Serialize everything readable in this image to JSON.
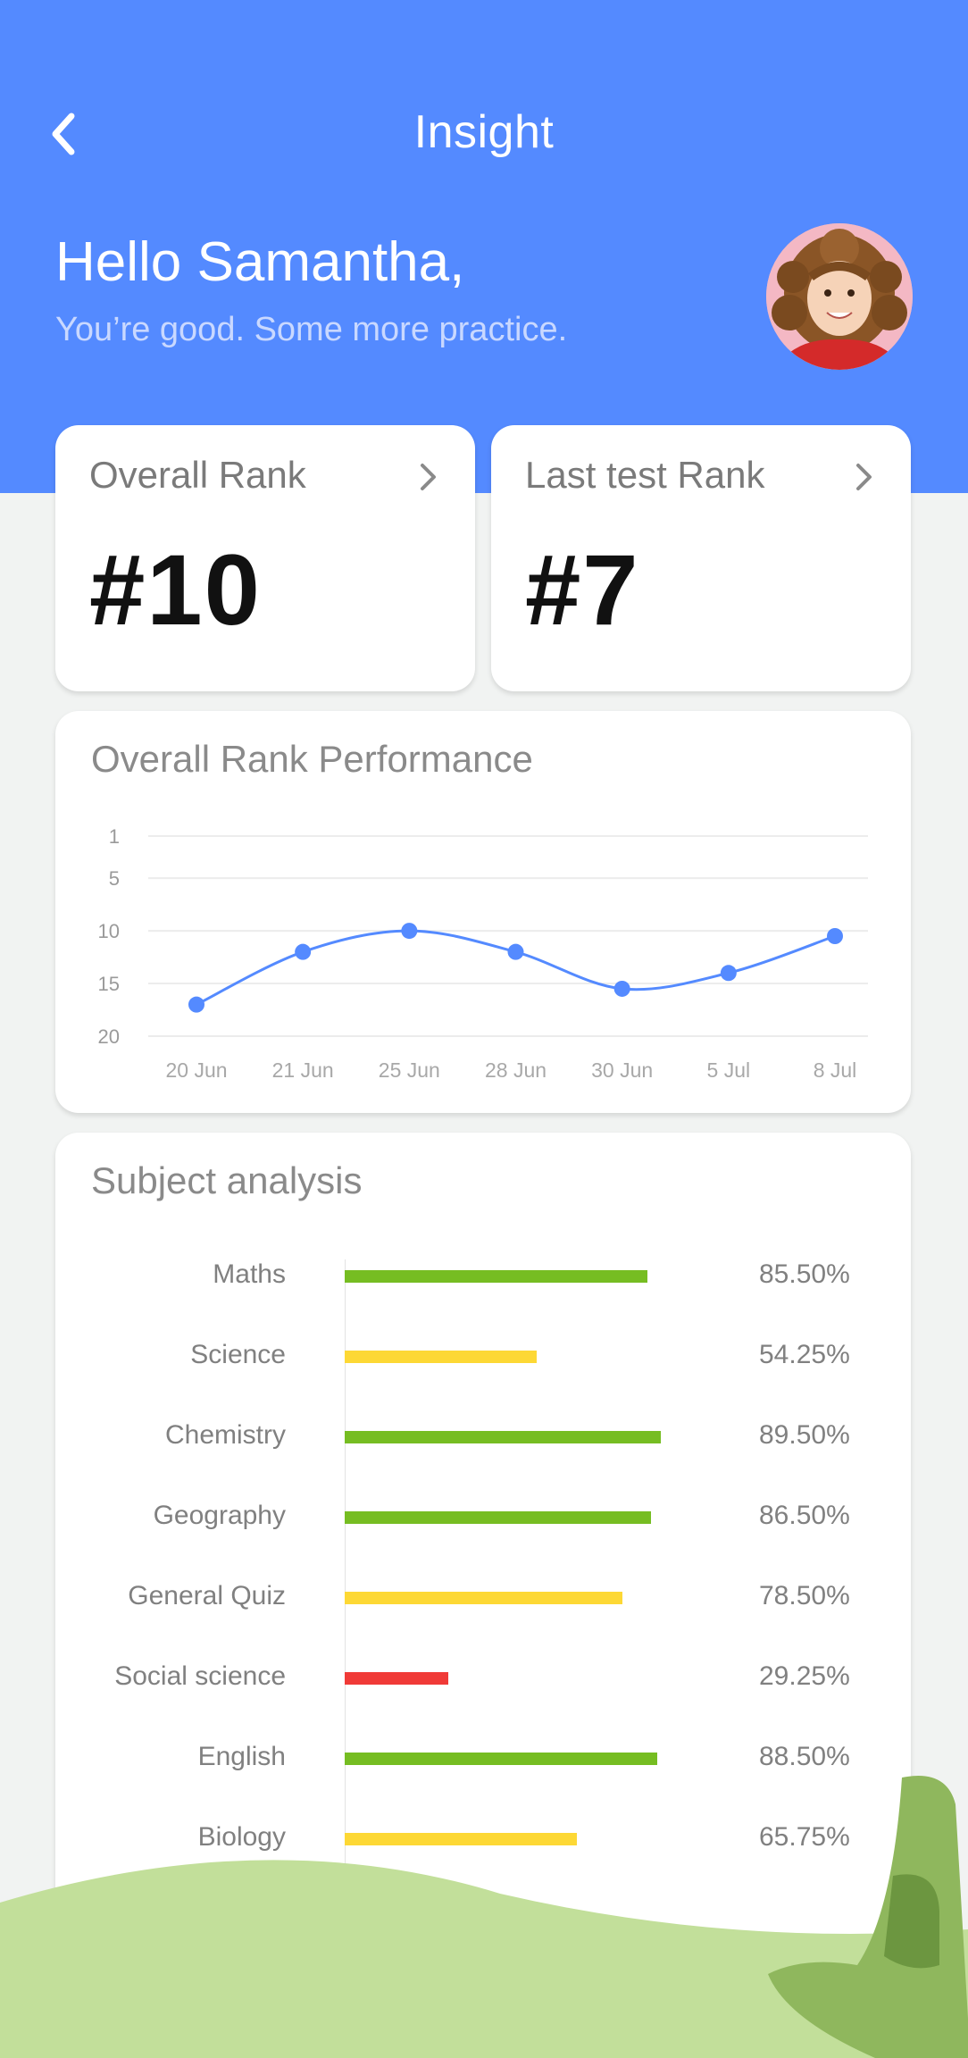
{
  "header": {
    "title": "Insight",
    "greeting": "Hello Samantha,",
    "subtext": "You’re good. Some more practice."
  },
  "rank_cards": [
    {
      "label": "Overall Rank",
      "value": "#10"
    },
    {
      "label": "Last test Rank",
      "value": "#7"
    }
  ],
  "performance": {
    "title": "Overall Rank Performance"
  },
  "subjects": {
    "title": "Subject analysis",
    "items": [
      {
        "name": "Maths",
        "percent": "85.50%",
        "value": 85.5,
        "color": "#76bd22"
      },
      {
        "name": "Science",
        "percent": "54.25%",
        "value": 54.25,
        "color": "#fdd835"
      },
      {
        "name": "Chemistry",
        "percent": "89.50%",
        "value": 89.5,
        "color": "#76bd22"
      },
      {
        "name": "Geography",
        "percent": "86.50%",
        "value": 86.5,
        "color": "#76bd22"
      },
      {
        "name": "General Quiz",
        "percent": "78.50%",
        "value": 78.5,
        "color": "#fdd835"
      },
      {
        "name": "Social science",
        "percent": "29.25%",
        "value": 29.25,
        "color": "#f03a37"
      },
      {
        "name": "English",
        "percent": "88.50%",
        "value": 88.5,
        "color": "#76bd22"
      },
      {
        "name": "Biology",
        "percent": "65.75%",
        "value": 65.75,
        "color": "#fdd835"
      }
    ]
  },
  "colors": {
    "primary": "#548aff",
    "good": "#76bd22",
    "average": "#fdd835",
    "poor": "#f03a37"
  },
  "chart_data": {
    "type": "line",
    "title": "Overall Rank Performance",
    "categories": [
      "20 Jun",
      "21 Jun",
      "25 Jun",
      "28 Jun",
      "30 Jun",
      "5 Jul",
      "8 Jul"
    ],
    "values": [
      17,
      12,
      10,
      12,
      15.5,
      14,
      10.5
    ],
    "y_ticks": [
      1,
      5,
      10,
      15,
      20
    ],
    "ylim": [
      1,
      20
    ],
    "y_inverted": true,
    "grid": true,
    "line_color": "#548aff"
  }
}
